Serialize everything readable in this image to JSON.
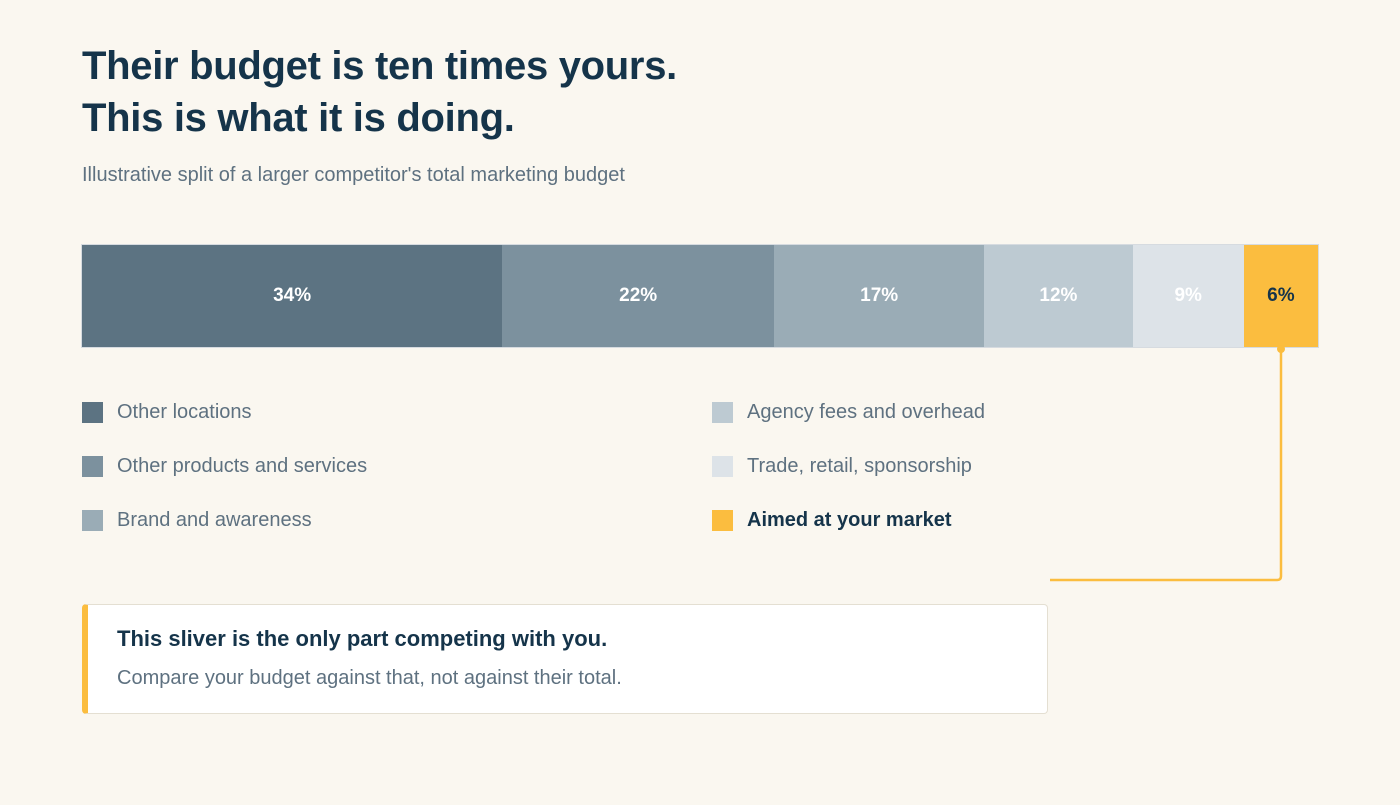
{
  "chart_data": {
    "type": "bar",
    "orientation": "horizontal-stacked-100",
    "title_lines": [
      "Their budget is ten times yours.",
      "This is what it is doing."
    ],
    "subtitle": "Illustrative split of a larger competitor's total marketing budget",
    "segments": [
      {
        "name": "Other locations",
        "value": 34,
        "label": "34%",
        "color": "#5c7382",
        "label_color": "#ffffff"
      },
      {
        "name": "Other products and services",
        "value": 22,
        "label": "22%",
        "color": "#7c919e",
        "label_color": "#ffffff"
      },
      {
        "name": "Brand and awareness",
        "value": 17,
        "label": "17%",
        "color": "#9aacb6",
        "label_color": "#ffffff"
      },
      {
        "name": "Agency fees and overhead",
        "value": 12,
        "label": "12%",
        "color": "#bdcad2",
        "label_color": "#ffffff"
      },
      {
        "name": "Trade, retail, sponsorship",
        "value": 9,
        "label": "9%",
        "color": "#dde3e8",
        "label_color": "#ffffff"
      },
      {
        "name": "Aimed at your market",
        "value": 6,
        "label": "6%",
        "color": "#fbbd3f",
        "label_color": "#15344a",
        "highlight": true
      }
    ],
    "xlim": [
      0,
      100
    ],
    "legend": {
      "columns": 2,
      "placement": "below"
    }
  },
  "callout": {
    "heading": "This sliver is the only part competing with you.",
    "body": "Compare your budget against that, not against their total."
  },
  "colors": {
    "background": "#faf7f0",
    "title": "#15344a",
    "muted_text": "#5e7180",
    "accent": "#fbbd3f"
  }
}
